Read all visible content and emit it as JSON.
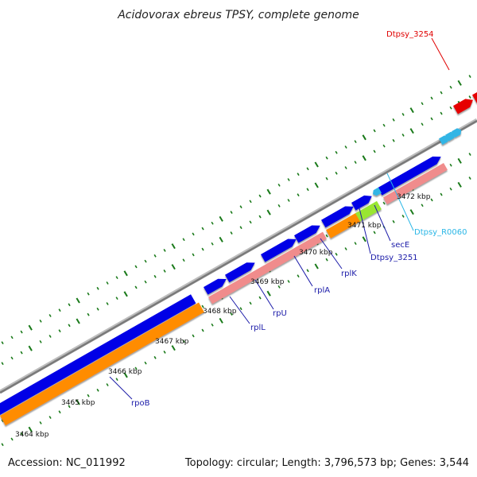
{
  "title": "Acidovorax ebreus TPSY, complete genome",
  "footer": {
    "accession": "Accession: NC_011992",
    "topology": "Topology: circular; Length: 3,796,573 bp; Genes: 3,544"
  },
  "tick_labels": [
    "3464 kbp",
    "3465 kbp",
    "3466 kbp",
    "3467 kbp",
    "3468 kbp",
    "3469 kbp",
    "3470 kbp",
    "3471 kbp",
    "3472 kbp"
  ],
  "gene_labels": [
    {
      "text": "Dtpsy_3254",
      "color": "#e00000"
    },
    {
      "text": "Dtpsy_R0060",
      "color": "#29b6e6"
    },
    {
      "text": "secE",
      "color": "#1a1aa8"
    },
    {
      "text": "Dtpsy_3251",
      "color": "#1a1aa8"
    },
    {
      "text": "rplK",
      "color": "#1a1aa8"
    },
    {
      "text": "rplA",
      "color": "#1a1aa8"
    },
    {
      "text": "rpU",
      "color": "#1a1aa8"
    },
    {
      "text": "rplL",
      "color": "#1a1aa8"
    },
    {
      "text": "rpoB",
      "color": "#1a1aa8"
    }
  ],
  "colors": {
    "cds": "#0000e6",
    "rna": "#f08c8c",
    "orange_track": "#ff8c00",
    "green_feature": "#99e633",
    "red_feature": "#e60000",
    "trna": "#33b5e5",
    "backbone": "#888888",
    "tick": "#1a7a1a"
  }
}
